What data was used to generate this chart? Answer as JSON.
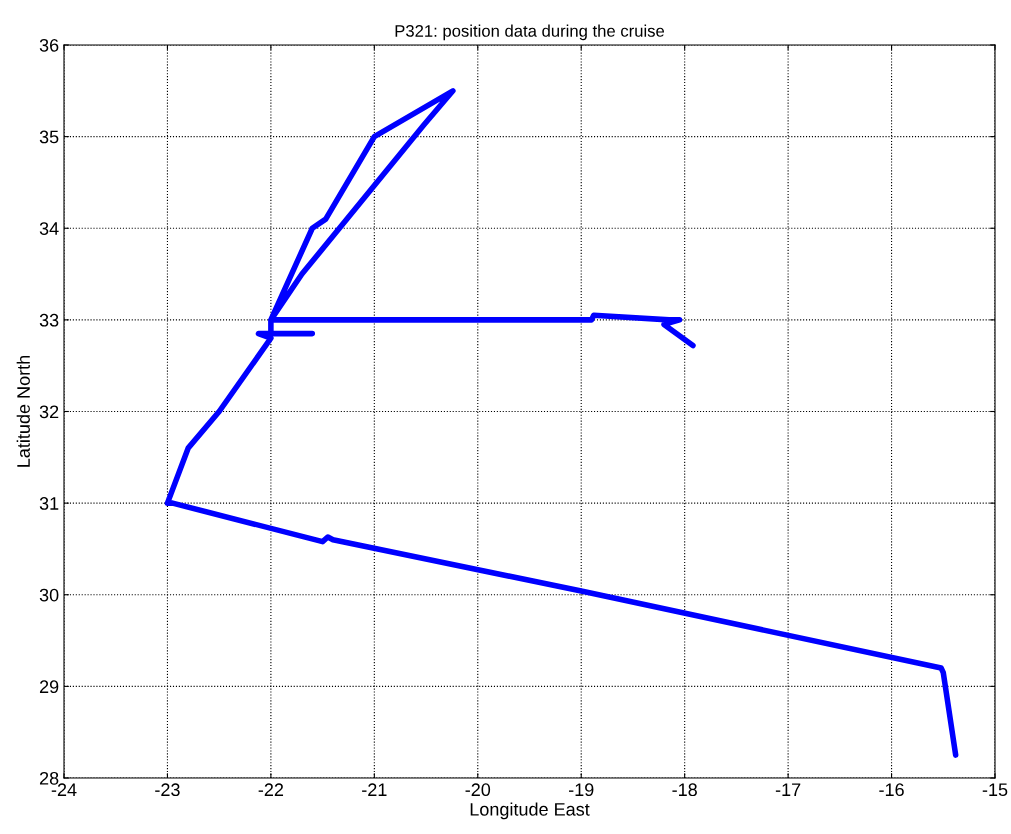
{
  "chart_data": {
    "type": "line",
    "title": "P321: position data during the cruise",
    "xlabel": "Longitude East",
    "ylabel": "Latitude North",
    "xlim": [
      -24,
      -15
    ],
    "xticks": [
      -24,
      -23,
      -22,
      -21,
      -20,
      -19,
      -18,
      -17,
      -16,
      -15
    ],
    "ylim": [
      28,
      36
    ],
    "yticks": [
      28,
      29,
      30,
      31,
      32,
      33,
      34,
      35,
      36
    ],
    "grid": true,
    "series": [
      {
        "color": "#0000ff",
        "x": [
          -15.38,
          -15.5,
          -15.52,
          -19.0,
          -21.4,
          -21.45,
          -21.5,
          -22.95,
          -23.0,
          -22.8,
          -22.5,
          -22.0,
          -22.12,
          -21.6,
          -22.0,
          -22.0,
          -21.6,
          -21.47,
          -21.0,
          -20.24,
          -20.52,
          -21.7,
          -22.0,
          -21.0,
          -19.5,
          -18.9,
          -18.88,
          -18.15,
          -18.05,
          -18.2,
          -17.92
        ],
        "values": [
          28.25,
          29.15,
          29.2,
          30.04,
          30.6,
          30.63,
          30.58,
          31.0,
          31.0,
          31.6,
          32.0,
          32.8,
          32.85,
          32.85,
          32.85,
          33.0,
          34.0,
          34.1,
          35.0,
          35.5,
          35.13,
          33.5,
          33.0,
          33.0,
          33.0,
          33.0,
          33.05,
          33.0,
          33.0,
          32.95,
          32.72
        ]
      }
    ]
  }
}
